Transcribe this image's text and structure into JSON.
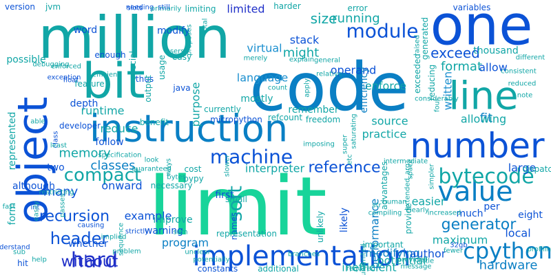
{
  "palette": {
    "blue": "#0b52d6",
    "azure": "#0a7fc4",
    "teal": "#11a6a6",
    "mint": "#18d49a",
    "navy": "#1f2fc8",
    "sky": "#1b8fcf"
  },
  "words": [
    {
      "text": "limit",
      "color": "mint"
    },
    {
      "text": "code",
      "color": "azure"
    },
    {
      "text": "million",
      "color": "teal"
    },
    {
      "text": "one",
      "color": "blue"
    },
    {
      "text": "bit",
      "color": "teal"
    },
    {
      "text": "line",
      "color": "teal"
    },
    {
      "text": "object",
      "color": "blue"
    },
    {
      "text": "instruction",
      "color": "azure"
    },
    {
      "text": "number",
      "color": "blue"
    },
    {
      "text": "implementation",
      "color": "blue"
    },
    {
      "text": "value",
      "color": "azure"
    },
    {
      "text": "cpython",
      "color": "azure"
    },
    {
      "text": "module",
      "color": "blue"
    },
    {
      "text": "hard",
      "color": "navy"
    },
    {
      "text": "machine",
      "color": "blue"
    },
    {
      "text": "bytecode",
      "color": "teal"
    },
    {
      "text": "compact",
      "color": "teal"
    },
    {
      "text": "header",
      "color": "blue"
    },
    {
      "text": "without",
      "color": "navy"
    },
    {
      "text": "generator",
      "color": "azure"
    },
    {
      "text": "recursion",
      "color": "blue"
    },
    {
      "text": "reference",
      "color": "blue"
    },
    {
      "text": "soft",
      "color": "teal"
    },
    {
      "text": "size",
      "color": "teal"
    },
    {
      "text": "exceed",
      "color": "blue"
    },
    {
      "text": "format",
      "color": "teal"
    },
    {
      "text": "running",
      "color": "teal"
    },
    {
      "text": "memory",
      "color": "teal"
    },
    {
      "text": "might",
      "color": "teal"
    },
    {
      "text": "hardware",
      "color": "azure"
    },
    {
      "text": "modifying",
      "color": "azure"
    },
    {
      "text": "inefficient",
      "color": "teal"
    },
    {
      "text": "interpreter",
      "color": "teal"
    },
    {
      "text": "fit",
      "color": "azure"
    },
    {
      "text": "allowing",
      "color": "teal"
    },
    {
      "text": "enforce",
      "color": "teal"
    },
    {
      "text": "limited",
      "color": "navy"
    },
    {
      "text": "stack",
      "color": "blue"
    },
    {
      "text": "operand",
      "color": "blue"
    },
    {
      "text": "allow",
      "color": "blue"
    },
    {
      "text": "virtual",
      "color": "sky"
    },
    {
      "text": "language",
      "color": "sky"
    },
    {
      "text": "example",
      "color": "blue"
    },
    {
      "text": "classes",
      "color": "azure"
    },
    {
      "text": "onward",
      "color": "blue"
    },
    {
      "text": "many",
      "color": "blue"
    },
    {
      "text": "runtime",
      "color": "teal"
    },
    {
      "text": "reduce",
      "color": "teal"
    },
    {
      "text": "purpose",
      "color": "teal"
    },
    {
      "text": "written",
      "color": "sky"
    },
    {
      "text": "easier",
      "color": "teal"
    },
    {
      "text": "large",
      "color": "blue"
    },
    {
      "text": "local",
      "color": "blue"
    },
    {
      "text": "program",
      "color": "azure"
    },
    {
      "text": "performance",
      "color": "azure"
    },
    {
      "text": "potential",
      "color": "teal"
    },
    {
      "text": "author",
      "color": "blue"
    },
    {
      "text": "maximum",
      "color": "teal"
    },
    {
      "text": "word",
      "color": "blue"
    },
    {
      "text": "modify",
      "color": "blue"
    },
    {
      "text": "depth",
      "color": "blue"
    },
    {
      "text": "possible",
      "color": "teal"
    },
    {
      "text": "two",
      "color": "blue"
    },
    {
      "text": "thousand",
      "color": "teal"
    },
    {
      "text": "source",
      "color": "teal"
    },
    {
      "text": "practice",
      "color": "teal"
    },
    {
      "text": "efficiency",
      "color": "azure"
    },
    {
      "text": "mostly",
      "color": "teal"
    },
    {
      "text": "remember",
      "color": "teal"
    },
    {
      "text": "first",
      "color": "blue"
    },
    {
      "text": "eight",
      "color": "blue"
    },
    {
      "text": "much",
      "color": "blue"
    },
    {
      "text": "per",
      "color": "blue"
    },
    {
      "text": "likely",
      "color": "blue"
    },
    {
      "text": "improve",
      "color": "teal"
    },
    {
      "text": "warning",
      "color": "blue"
    },
    {
      "text": "follow",
      "color": "blue"
    },
    {
      "text": "form",
      "color": "teal"
    },
    {
      "text": "whether",
      "color": "blue"
    },
    {
      "text": "although",
      "color": "blue"
    },
    {
      "text": "represented",
      "color": "teal"
    },
    {
      "text": "version",
      "color": "blue"
    },
    {
      "text": "jvm",
      "color": "teal"
    },
    {
      "text": "limiting",
      "color": "teal"
    },
    {
      "text": "harder",
      "color": "teal"
    },
    {
      "text": "error",
      "color": "teal"
    },
    {
      "text": "variables",
      "color": "blue"
    },
    {
      "text": "generated",
      "color": "teal"
    },
    {
      "text": "exceeded",
      "color": "teal"
    },
    {
      "text": "reducing",
      "color": "teal"
    },
    {
      "text": "enough",
      "color": "blue"
    },
    {
      "text": "special",
      "color": "teal"
    },
    {
      "text": "usage",
      "color": "teal"
    },
    {
      "text": "thus",
      "color": "blue"
    },
    {
      "text": "easy",
      "color": "teal"
    },
    {
      "text": "java",
      "color": "blue"
    },
    {
      "text": "output",
      "color": "teal"
    },
    {
      "text": "currently",
      "color": "teal"
    },
    {
      "text": "small",
      "color": "teal"
    },
    {
      "text": "cost",
      "color": "teal"
    },
    {
      "text": "pypy",
      "color": "teal"
    },
    {
      "text": "necessary",
      "color": "teal"
    },
    {
      "text": "names",
      "color": "blue"
    },
    {
      "text": "representation",
      "color": "teal"
    },
    {
      "text": "unlikely",
      "color": "teal"
    },
    {
      "text": "advantages",
      "color": "teal"
    },
    {
      "text": "important",
      "color": "teal"
    },
    {
      "text": "provide",
      "color": "teal"
    },
    {
      "text": "dispatch",
      "color": "teal"
    },
    {
      "text": "hit",
      "color": "blue"
    },
    {
      "text": "constants",
      "color": "blue"
    },
    {
      "text": "additional",
      "color": "teal"
    },
    {
      "text": "benefit",
      "color": "teal"
    },
    {
      "text": "micropython",
      "color": "blue"
    },
    {
      "text": "refcount",
      "color": "teal"
    },
    {
      "text": "freedom",
      "color": "teal"
    },
    {
      "text": "developer",
      "color": "blue"
    },
    {
      "text": "feature",
      "color": "teal"
    },
    {
      "text": "debugging",
      "color": "teal"
    },
    {
      "text": "exception",
      "color": "blue"
    },
    {
      "text": "efficient",
      "color": "teal"
    },
    {
      "text": "needing",
      "color": "blue"
    },
    {
      "text": "primarily",
      "color": "teal"
    },
    {
      "text": "slots",
      "color": "blue"
    },
    {
      "text": "still",
      "color": "blue"
    },
    {
      "text": "proposes",
      "color": "teal"
    },
    {
      "text": "total",
      "color": "teal"
    },
    {
      "text": "users",
      "color": "teal"
    },
    {
      "text": "merely",
      "color": "teal"
    },
    {
      "text": "explain",
      "color": "teal"
    },
    {
      "text": "general",
      "color": "teal"
    },
    {
      "text": "raised",
      "color": "teal"
    },
    {
      "text": "consistent",
      "color": "teal"
    },
    {
      "text": "reduced",
      "color": "teal"
    },
    {
      "text": "note",
      "color": "teal"
    },
    {
      "text": "different",
      "color": "teal"
    },
    {
      "text": "enforced",
      "color": "teal"
    },
    {
      "text": "float",
      "color": "blue"
    },
    {
      "text": "class",
      "color": "blue"
    },
    {
      "text": "able",
      "color": "teal"
    },
    {
      "text": "least",
      "color": "teal"
    },
    {
      "text": "relative",
      "color": "teal"
    },
    {
      "text": "count",
      "color": "teal"
    },
    {
      "text": "apply",
      "color": "teal"
    },
    {
      "text": "considerably",
      "color": "teal"
    },
    {
      "text": "four",
      "color": "teal"
    },
    {
      "text": "saturating",
      "color": "teal"
    },
    {
      "text": "super",
      "color": "teal"
    },
    {
      "text": "guaranteed",
      "color": "teal"
    },
    {
      "text": "specification",
      "color": "teal"
    },
    {
      "text": "look",
      "color": "teal"
    },
    {
      "text": "ways",
      "color": "teal"
    },
    {
      "text": "bytes",
      "color": "teal"
    },
    {
      "text": "slower",
      "color": "teal"
    },
    {
      "text": "imposing",
      "color": "teal"
    },
    {
      "text": "etc",
      "color": "teal"
    },
    {
      "text": "intermediate",
      "color": "teal"
    },
    {
      "text": "space",
      "color": "teal"
    },
    {
      "text": "increased",
      "color": "teal"
    },
    {
      "text": "simpler",
      "color": "teal"
    },
    {
      "text": "profiling",
      "color": "teal"
    },
    {
      "text": "fast",
      "color": "teal"
    },
    {
      "text": "int",
      "color": "blue"
    },
    {
      "text": "passes",
      "color": "teal"
    },
    {
      "text": "easily",
      "color": "teal"
    },
    {
      "text": "causing",
      "color": "blue"
    },
    {
      "text": "implied",
      "color": "teal"
    },
    {
      "text": "strictly",
      "color": "blue"
    },
    {
      "text": "sum",
      "color": "teal"
    },
    {
      "text": "problem",
      "color": "teal"
    },
    {
      "text": "sequence",
      "color": "teal"
    },
    {
      "text": "understand",
      "color": "blue"
    },
    {
      "text": "sub",
      "color": "teal"
    },
    {
      "text": "help",
      "color": "teal"
    },
    {
      "text": "potentially",
      "color": "teal"
    },
    {
      "text": "unclear",
      "color": "teal"
    },
    {
      "text": "branches",
      "color": "teal"
    },
    {
      "text": "required",
      "color": "teal"
    },
    {
      "text": "unlimited",
      "color": "teal"
    },
    {
      "text": "provided",
      "color": "teal"
    },
    {
      "text": "message",
      "color": "teal"
    },
    {
      "text": "little",
      "color": "teal"
    },
    {
      "text": "fewer",
      "color": "teal"
    },
    {
      "text": "32gb",
      "color": "blue"
    },
    {
      "text": "str",
      "color": "teal"
    },
    {
      "text": "compiling",
      "color": "teal"
    },
    {
      "text": "clearly",
      "color": "teal"
    },
    {
      "text": "human",
      "color": "teal"
    },
    {
      "text": "extended_arg",
      "color": "teal"
    },
    {
      "text": "restricting",
      "color": "teal"
    },
    {
      "text": "inferred",
      "color": "blue"
    }
  ]
}
